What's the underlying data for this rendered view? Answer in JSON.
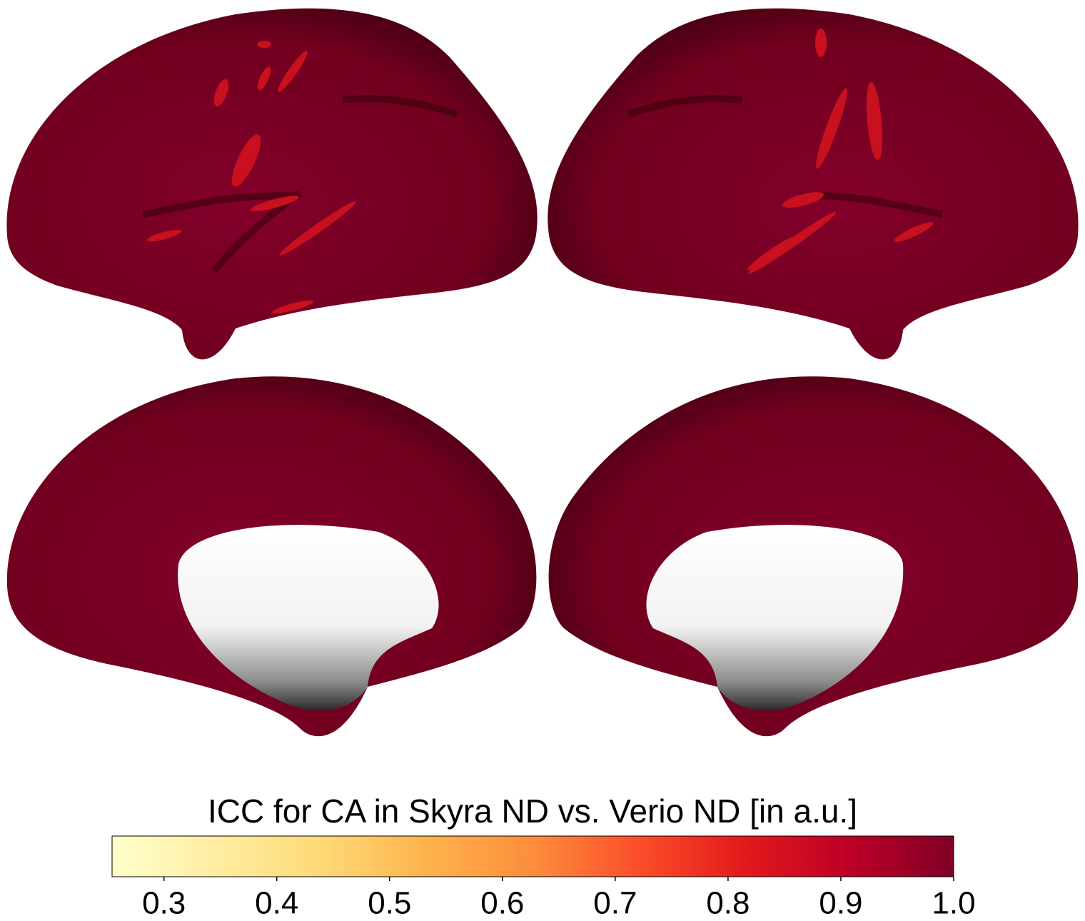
{
  "colorbar": {
    "title": "ICC for CA in Skyra ND vs. Verio ND [in a.u.]",
    "lim": [
      0.254,
      1.0
    ],
    "ticks": [
      0.3,
      0.4,
      0.5,
      0.6,
      0.7,
      0.8,
      0.9,
      {
        "value": 1.0,
        "label": "1.0"
      }
    ],
    "colormap": [
      "#ffffcc",
      "#ffeda0",
      "#fed976",
      "#feb24c",
      "#fd8d3c",
      "#fc4e2a",
      "#e31a1c",
      "#bd0026",
      "#800026"
    ]
  }
}
